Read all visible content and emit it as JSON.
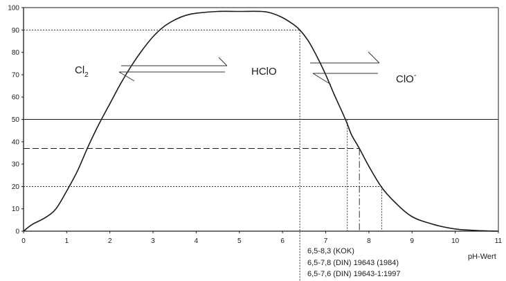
{
  "chart_data": {
    "type": "line",
    "x_ticks": [
      0,
      1,
      2,
      3,
      4,
      5,
      6,
      7,
      8,
      9,
      10,
      11
    ],
    "y_ticks": [
      0,
      10,
      20,
      30,
      40,
      50,
      60,
      70,
      80,
      90,
      100
    ],
    "xlim": [
      0,
      11
    ],
    "ylim": [
      0,
      100
    ],
    "xlabel": "pH-Wert",
    "ylabel": "",
    "grid": false,
    "series": [
      {
        "points": [
          [
            0,
            0
          ],
          [
            0.2,
            3
          ],
          [
            0.5,
            6
          ],
          [
            0.75,
            10
          ],
          [
            1.0,
            18
          ],
          [
            1.25,
            27
          ],
          [
            1.5,
            38
          ],
          [
            1.75,
            48
          ],
          [
            2.0,
            57
          ],
          [
            2.25,
            66
          ],
          [
            2.5,
            74
          ],
          [
            2.75,
            81
          ],
          [
            3.0,
            87
          ],
          [
            3.25,
            91.5
          ],
          [
            3.5,
            94.5
          ],
          [
            3.75,
            96.5
          ],
          [
            4.0,
            97.5
          ],
          [
            4.5,
            98.3
          ],
          [
            5.0,
            98.3
          ],
          [
            5.5,
            98.3
          ],
          [
            5.75,
            97.5
          ],
          [
            6.0,
            95.5
          ],
          [
            6.25,
            92.5
          ],
          [
            6.4,
            90
          ],
          [
            6.6,
            85
          ],
          [
            6.8,
            78
          ],
          [
            7.0,
            70
          ],
          [
            7.2,
            61
          ],
          [
            7.4,
            52.5
          ],
          [
            7.5,
            48
          ],
          [
            7.6,
            43
          ],
          [
            7.78,
            37
          ],
          [
            8.0,
            29
          ],
          [
            8.3,
            19.5
          ],
          [
            8.6,
            13
          ],
          [
            9.0,
            6.5
          ],
          [
            9.5,
            3
          ],
          [
            10.0,
            1
          ],
          [
            10.5,
            0.3
          ],
          [
            11.0,
            0
          ]
        ]
      }
    ],
    "reference_lines": [
      {
        "axis": "y",
        "value": 90,
        "x_from": 0,
        "x_to": 6.4,
        "style": "dotted"
      },
      {
        "axis": "y",
        "value": 50,
        "x_from": 0,
        "x_to": 11,
        "style": "solid"
      },
      {
        "axis": "y",
        "value": 37,
        "x_from": 0,
        "x_to": 7.78,
        "style": "dashed"
      },
      {
        "axis": "y",
        "value": 20,
        "x_from": 0,
        "x_to": 8.3,
        "style": "dotted"
      },
      {
        "axis": "x",
        "value": 6.4,
        "y_from": 90,
        "y_to": 0,
        "style": "dotted",
        "extends_below": true
      },
      {
        "axis": "x",
        "value": 7.5,
        "y_from": 50,
        "y_to": 0,
        "style": "dotted"
      },
      {
        "axis": "x",
        "value": 7.78,
        "y_from": 37,
        "y_to": 0,
        "style": "dashdot"
      },
      {
        "axis": "x",
        "value": 8.3,
        "y_from": 20,
        "y_to": 0,
        "style": "dotted"
      }
    ],
    "species_labels": {
      "cl2": {
        "main": "Cl",
        "sub": "2"
      },
      "hclo": "HClO",
      "clo": {
        "main": "ClO",
        "sup": "-"
      }
    },
    "annotations": [
      "6,5-8,3 (KOK)",
      "6,5-7,8 (DIN) 19643 (1984)",
      "6,5-7,6 (DIN) 19643-1:1997"
    ]
  }
}
